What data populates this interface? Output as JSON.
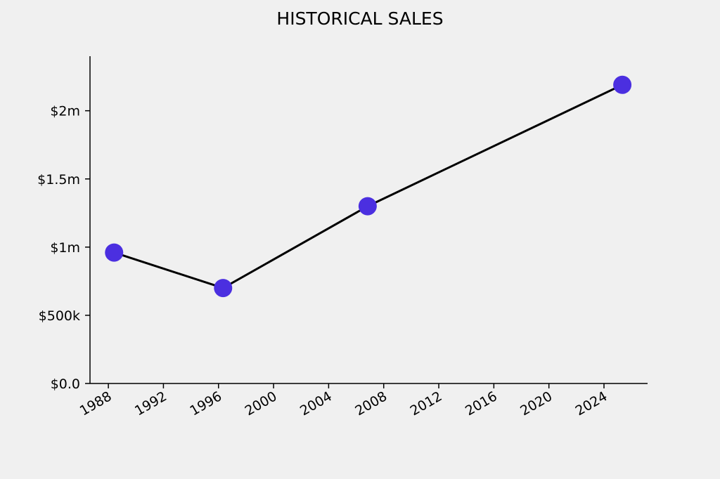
{
  "chart_data": {
    "type": "line",
    "title": "HISTORICAL SALES",
    "xlabel": "",
    "ylabel": "",
    "x_axis": {
      "type": "date",
      "ticks": [
        "1988",
        "1992",
        "1996",
        "2000",
        "2004",
        "2008",
        "2012",
        "2016",
        "2020",
        "2024"
      ],
      "range": [
        "1986-09",
        "2027-03"
      ]
    },
    "y_axis": {
      "ticks": [
        {
          "value": 0,
          "label": "$0.0"
        },
        {
          "value": 500000,
          "label": "$500k"
        },
        {
          "value": 1000000,
          "label": "$1m"
        },
        {
          "value": 1500000,
          "label": "$1.5m"
        },
        {
          "value": 2000000,
          "label": "$2m"
        }
      ],
      "range": [
        0,
        2400000
      ]
    },
    "series": [
      {
        "points": [
          {
            "x": "1988-06",
            "y": 960000
          },
          {
            "x": "1996-05",
            "y": 700000
          },
          {
            "x": "2006-11",
            "y": 1300000
          },
          {
            "x": "2025-05",
            "y": 2190000
          }
        ]
      }
    ],
    "grid": false,
    "colors": {
      "line": "#000000",
      "marker": "#4b2fe0",
      "background": "#f0f0f0"
    }
  }
}
